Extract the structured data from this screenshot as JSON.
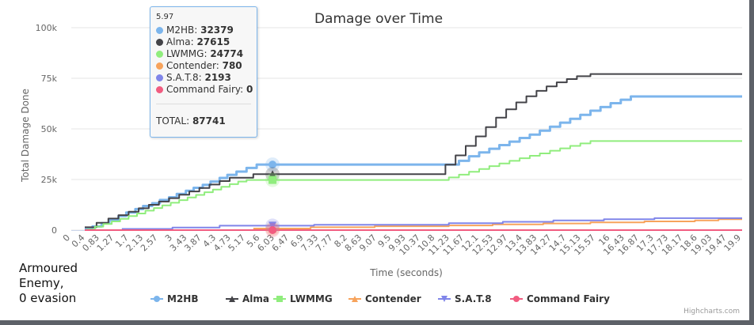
{
  "annotation": {
    "lines": [
      "Armoured",
      "Enemy,",
      "0 evasion"
    ]
  },
  "credit": "Highcharts.com",
  "tooltip": {
    "header": "5.97",
    "entries": [
      {
        "name": "M2HB",
        "value": "32379",
        "color": "#7cb5ec"
      },
      {
        "name": "Alma",
        "value": "27615",
        "color": "#434348"
      },
      {
        "name": "LWMMG",
        "value": "24774",
        "color": "#90ed7d"
      },
      {
        "name": "Contender",
        "value": "780",
        "color": "#f7a35c"
      },
      {
        "name": "S.A.T.8",
        "value": "2193",
        "color": "#8085e9"
      },
      {
        "name": "Command Fairy",
        "value": "0",
        "color": "#f15c80"
      }
    ],
    "total_label": "TOTAL:",
    "total_value": "87741"
  },
  "chart_data": {
    "type": "line",
    "step": true,
    "title": "Damage over Time",
    "xlabel": "Time (seconds)",
    "ylabel": "Total Damage Done",
    "xlim": [
      0,
      19.9
    ],
    "ylim": [
      0,
      100000
    ],
    "y_ticks": [
      0,
      25000,
      50000,
      75000,
      100000
    ],
    "y_tick_labels": [
      "0",
      "25k",
      "50k",
      "75k",
      "100k"
    ],
    "x_tick_labels": [
      "0",
      "0.4",
      "0.83",
      "1.27",
      "1.7",
      "2.13",
      "2.57",
      "3",
      "3.43",
      "3.87",
      "4.3",
      "4.73",
      "5.17",
      "5.6",
      "6.03",
      "6.47",
      "6.9",
      "7.33",
      "7.77",
      "8.2",
      "8.63",
      "9.07",
      "9.5",
      "9.93",
      "10.37",
      "10.8",
      "11.23",
      "11.67",
      "12.1",
      "12.53",
      "12.97",
      "13.4",
      "13.83",
      "14.27",
      "14.7",
      "15.13",
      "15.57",
      "16",
      "16.43",
      "16.87",
      "17.3",
      "17.73",
      "18.17",
      "18.6",
      "19.03",
      "19.47",
      "19.9"
    ],
    "grid": true,
    "legend_position": "bottom-center",
    "hover_x": 5.97,
    "series": [
      {
        "name": "M2HB",
        "color": "#7cb5ec",
        "marker": "circle",
        "points": [
          [
            0.4,
            500
          ],
          [
            0.63,
            1800
          ],
          [
            0.9,
            3400
          ],
          [
            1.13,
            5000
          ],
          [
            1.4,
            7000
          ],
          [
            1.63,
            8700
          ],
          [
            1.9,
            10400
          ],
          [
            2.13,
            11900
          ],
          [
            2.4,
            13300
          ],
          [
            2.63,
            14900
          ],
          [
            2.9,
            16200
          ],
          [
            3.13,
            17900
          ],
          [
            3.4,
            19400
          ],
          [
            3.63,
            20900
          ],
          [
            3.9,
            22400
          ],
          [
            4.13,
            24000
          ],
          [
            4.4,
            25800
          ],
          [
            4.63,
            27300
          ],
          [
            4.9,
            28900
          ],
          [
            5.2,
            30700
          ],
          [
            5.5,
            32379
          ],
          [
            11.1,
            32379
          ],
          [
            11.5,
            34200
          ],
          [
            11.8,
            36500
          ],
          [
            12.1,
            38400
          ],
          [
            12.4,
            40200
          ],
          [
            12.7,
            42000
          ],
          [
            13.0,
            43700
          ],
          [
            13.3,
            45500
          ],
          [
            13.6,
            47200
          ],
          [
            13.9,
            49100
          ],
          [
            14.2,
            51100
          ],
          [
            14.5,
            53100
          ],
          [
            14.8,
            55000
          ],
          [
            15.1,
            56900
          ],
          [
            15.4,
            59000
          ],
          [
            15.7,
            60800
          ],
          [
            16.0,
            62700
          ],
          [
            16.3,
            64400
          ],
          [
            16.6,
            66000
          ],
          [
            19.9,
            66000
          ]
        ]
      },
      {
        "name": "Alma",
        "color": "#434348",
        "marker": "triangle",
        "points": [
          [
            0.4,
            1400
          ],
          [
            0.75,
            3600
          ],
          [
            1.1,
            5700
          ],
          [
            1.4,
            7400
          ],
          [
            1.7,
            9100
          ],
          [
            2.0,
            10800
          ],
          [
            2.3,
            12500
          ],
          [
            2.6,
            14100
          ],
          [
            2.9,
            15800
          ],
          [
            3.2,
            17500
          ],
          [
            3.5,
            19100
          ],
          [
            3.8,
            20800
          ],
          [
            4.1,
            22500
          ],
          [
            4.4,
            24200
          ],
          [
            4.7,
            25900
          ],
          [
            5.4,
            27615
          ],
          [
            10.8,
            27615
          ],
          [
            11.1,
            32300
          ],
          [
            11.4,
            36900
          ],
          [
            11.7,
            41600
          ],
          [
            12.0,
            46300
          ],
          [
            12.3,
            50900
          ],
          [
            12.6,
            55600
          ],
          [
            12.9,
            59700
          ],
          [
            13.2,
            63100
          ],
          [
            13.5,
            66100
          ],
          [
            13.8,
            68800
          ],
          [
            14.1,
            71000
          ],
          [
            14.4,
            73000
          ],
          [
            14.7,
            74600
          ],
          [
            15.0,
            76000
          ],
          [
            15.4,
            77100
          ],
          [
            19.9,
            77100
          ]
        ]
      },
      {
        "name": "LWMMG",
        "color": "#90ed7d",
        "marker": "square",
        "points": [
          [
            0.45,
            300
          ],
          [
            0.7,
            1700
          ],
          [
            0.95,
            3000
          ],
          [
            1.2,
            4300
          ],
          [
            1.45,
            5600
          ],
          [
            1.7,
            6900
          ],
          [
            1.95,
            8200
          ],
          [
            2.2,
            9600
          ],
          [
            2.45,
            10900
          ],
          [
            2.7,
            12200
          ],
          [
            2.95,
            13500
          ],
          [
            3.2,
            14800
          ],
          [
            3.45,
            16100
          ],
          [
            3.7,
            17400
          ],
          [
            3.95,
            18700
          ],
          [
            4.2,
            20000
          ],
          [
            4.45,
            21400
          ],
          [
            4.7,
            22700
          ],
          [
            4.95,
            24000
          ],
          [
            5.2,
            24774
          ],
          [
            10.9,
            24774
          ],
          [
            11.2,
            26000
          ],
          [
            11.5,
            27400
          ],
          [
            11.8,
            28800
          ],
          [
            12.1,
            30200
          ],
          [
            12.4,
            31600
          ],
          [
            12.7,
            32900
          ],
          [
            13.0,
            34200
          ],
          [
            13.3,
            35500
          ],
          [
            13.6,
            36700
          ],
          [
            13.9,
            37900
          ],
          [
            14.2,
            39200
          ],
          [
            14.5,
            40400
          ],
          [
            14.8,
            41600
          ],
          [
            15.1,
            42800
          ],
          [
            15.4,
            44000
          ],
          [
            19.9,
            44000
          ]
        ]
      },
      {
        "name": "Contender",
        "color": "#f7a35c",
        "marker": "triangle",
        "points": [
          [
            5.4,
            780
          ],
          [
            7.1,
            1400
          ],
          [
            9.0,
            1900
          ],
          [
            11.2,
            2300
          ],
          [
            12.5,
            2800
          ],
          [
            14.0,
            3300
          ],
          [
            15.4,
            3800
          ],
          [
            17.0,
            4300
          ],
          [
            18.5,
            4800
          ],
          [
            19.2,
            5400
          ],
          [
            19.9,
            5400
          ]
        ]
      },
      {
        "name": "S.A.T.8",
        "color": "#8085e9",
        "marker": "triangle-down",
        "points": [
          [
            1.5,
            600
          ],
          [
            3.0,
            1300
          ],
          [
            4.4,
            2193
          ],
          [
            7.2,
            2600
          ],
          [
            11.2,
            3400
          ],
          [
            12.8,
            4100
          ],
          [
            14.3,
            4800
          ],
          [
            15.8,
            5400
          ],
          [
            17.3,
            5900
          ],
          [
            19.9,
            5900
          ]
        ]
      },
      {
        "name": "Command Fairy",
        "color": "#f15c80",
        "marker": "circle",
        "points": [
          [
            0.4,
            0
          ],
          [
            19.9,
            0
          ]
        ]
      }
    ]
  }
}
